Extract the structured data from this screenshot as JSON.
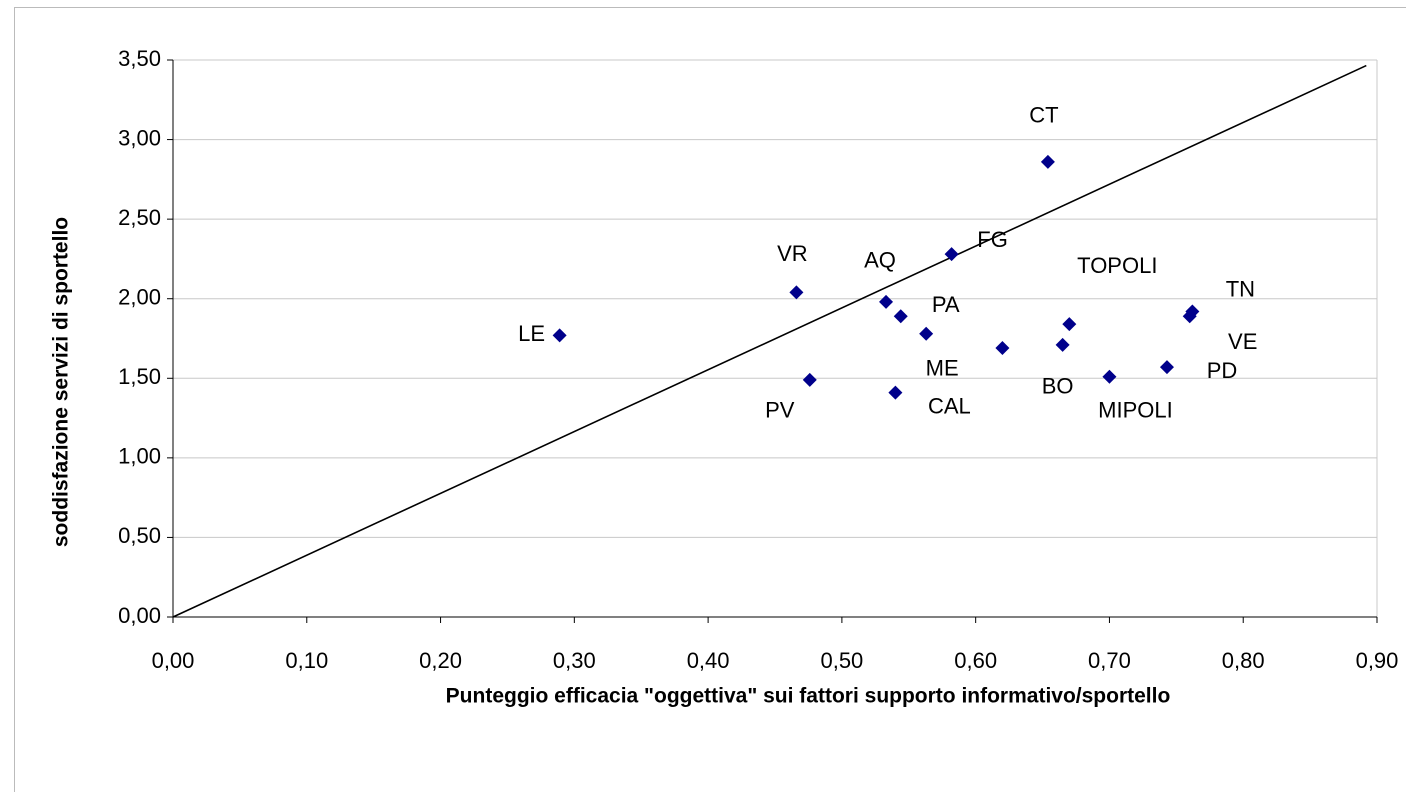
{
  "chart_data": {
    "type": "scatter",
    "xlabel": "Punteggio efficacia \"oggettiva\" sui fattori supporto informativo/sportello",
    "ylabel": "soddisfazione servizi di sportello",
    "series": [
      {
        "color": "#00008b",
        "labels": [
          "LE",
          "VR",
          "PV",
          "AQ",
          "PA",
          "ME",
          "CAL",
          "FG",
          "CT",
          null,
          "BO",
          "TOPOLI",
          "MIPOLI",
          "PD",
          "VE",
          "TN"
        ],
        "x": [
          0.289,
          0.466,
          0.476,
          0.533,
          0.544,
          0.563,
          0.54,
          0.582,
          0.654,
          0.62,
          0.665,
          0.67,
          0.7,
          0.743,
          0.76,
          0.762
        ],
        "values": [
          1.77,
          2.04,
          1.49,
          1.98,
          1.89,
          1.78,
          1.41,
          2.28,
          2.86,
          1.69,
          1.71,
          1.84,
          1.51,
          1.57,
          1.89,
          1.92
        ]
      }
    ],
    "reference_line": {
      "x": [
        0,
        0.892
      ],
      "y": [
        0,
        3.465
      ],
      "color": "#000000"
    },
    "xlim": [
      0,
      0.9
    ],
    "xticks": [
      {
        "value": 0,
        "label": "0,00"
      },
      {
        "value": 0.1,
        "label": "0,10"
      },
      {
        "value": 0.2,
        "label": "0,20"
      },
      {
        "value": 0.3,
        "label": "0,30"
      },
      {
        "value": 0.4,
        "label": "0,40"
      },
      {
        "value": 0.5,
        "label": "0,50"
      },
      {
        "value": 0.6,
        "label": "0,60"
      },
      {
        "value": 0.7,
        "label": "0,70"
      },
      {
        "value": 0.8,
        "label": "0,80"
      },
      {
        "value": 0.9,
        "label": "0,90"
      }
    ],
    "ylim": [
      0,
      3.5
    ],
    "yticks": [
      {
        "value": 0,
        "label": "0,00"
      },
      {
        "value": 0.5,
        "label": "0,50"
      },
      {
        "value": 1,
        "label": "1,00"
      },
      {
        "value": 1.5,
        "label": "1,50"
      },
      {
        "value": 2,
        "label": "2,00"
      },
      {
        "value": 2.5,
        "label": "2,50"
      },
      {
        "value": 3,
        "label": "3,00"
      },
      {
        "value": 3.5,
        "label": "3,50"
      }
    ],
    "grid": true
  }
}
